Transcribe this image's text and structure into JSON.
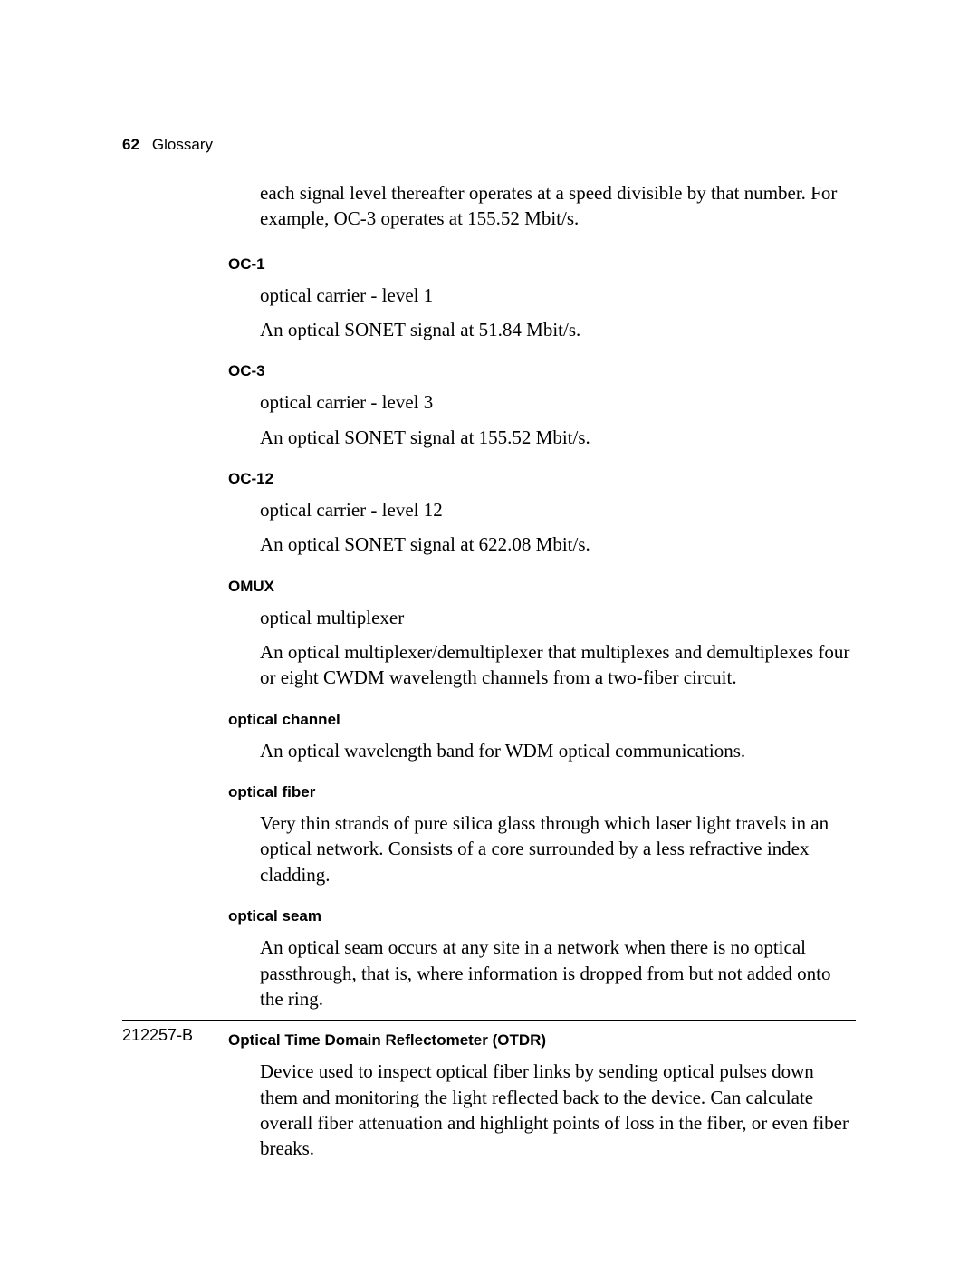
{
  "header": {
    "page_number": "62",
    "section": "Glossary"
  },
  "intro_paragraph": "each signal level thereafter operates at a speed divisible by that number. For example, OC-3 operates at 155.52 Mbit/s.",
  "entries": [
    {
      "term": "OC-1",
      "lines": [
        "optical carrier - level 1",
        "An optical SONET signal at 51.84 Mbit/s."
      ]
    },
    {
      "term": "OC-3",
      "lines": [
        "optical carrier - level 3",
        "An optical SONET signal at 155.52 Mbit/s."
      ]
    },
    {
      "term": "OC-12",
      "lines": [
        "optical carrier - level 12",
        "An optical SONET signal at 622.08 Mbit/s."
      ]
    },
    {
      "term": "OMUX",
      "lines": [
        "optical multiplexer",
        "An optical multiplexer/demultiplexer that multiplexes and demultiplexes four or eight CWDM wavelength channels from a two-fiber circuit."
      ]
    },
    {
      "term": "optical channel",
      "lines": [
        "An optical wavelength band for WDM optical communications."
      ]
    },
    {
      "term": "optical fiber",
      "lines": [
        "Very thin strands of pure silica glass through which laser light travels in an optical network. Consists of a core surrounded by a less refractive index cladding."
      ]
    },
    {
      "term": "optical seam",
      "lines": [
        "An optical seam occurs at any site in a network when there is no optical passthrough, that is, where information is dropped from but not added onto the ring."
      ]
    },
    {
      "term": "Optical Time Domain Reflectometer (OTDR)",
      "lines": [
        "Device used to inspect optical fiber links by sending optical pulses down them and monitoring the light reflected back to the device. Can calculate overall fiber attenuation and highlight points of loss in the fiber, or even fiber breaks."
      ]
    }
  ],
  "footer": {
    "doc_id": "212257-B"
  }
}
